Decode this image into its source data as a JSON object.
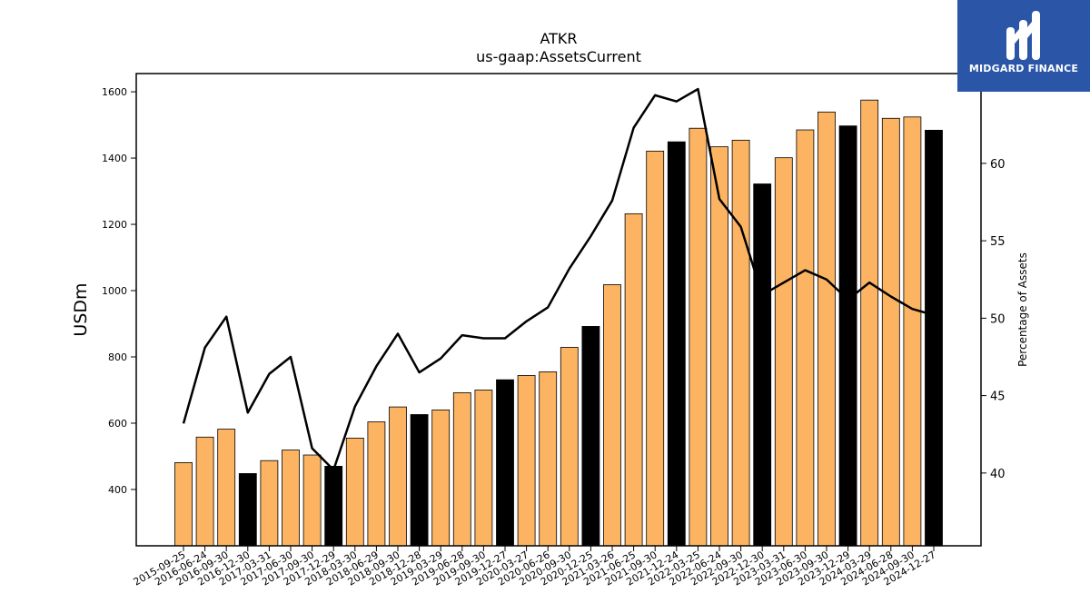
{
  "chart_data": {
    "type": "bar",
    "title": "ATKR",
    "subtitle": "us-gaap:AssetsCurrent",
    "ylabel": "USDm",
    "y2label": "Percentage of Assets",
    "ylim": [
      230,
      1655
    ],
    "y2lim": [
      35.3,
      65.8
    ],
    "yticks": [
      400,
      600,
      800,
      1000,
      1200,
      1400,
      1600
    ],
    "y2ticks": [
      40,
      45,
      50,
      55,
      60
    ],
    "grid": false,
    "categories": [
      "2015-09-25",
      "2016-06-24",
      "2016-09-30",
      "2016-12-30",
      "2017-03-31",
      "2017-06-30",
      "2017-09-30",
      "2017-12-29",
      "2018-03-30",
      "2018-06-29",
      "2018-09-30",
      "2018-12-28",
      "2019-03-29",
      "2019-06-28",
      "2019-09-30",
      "2019-12-27",
      "2020-03-27",
      "2020-06-26",
      "2020-09-30",
      "2020-12-25",
      "2021-03-26",
      "2021-06-25",
      "2021-09-30",
      "2021-12-24",
      "2022-03-25",
      "2022-06-24",
      "2022-09-30",
      "2022-12-30",
      "2023-03-31",
      "2023-06-30",
      "2023-09-30",
      "2023-12-29",
      "2024-03-29",
      "2024-06-28",
      "2024-09-30",
      "2024-12-27"
    ],
    "series": [
      {
        "type": "bar",
        "axis": "left",
        "values": [
          481,
          558,
          582,
          448,
          487,
          519,
          504,
          470,
          555,
          604,
          649,
          626,
          640,
          692,
          700,
          731,
          744,
          755,
          829,
          892,
          1018,
          1232,
          1421,
          1449,
          1490,
          1434,
          1454,
          1322,
          1401,
          1485,
          1539,
          1497,
          1575,
          1520,
          1524,
          1484
        ],
        "highlight": [
          false,
          false,
          false,
          true,
          false,
          false,
          false,
          true,
          false,
          false,
          false,
          true,
          false,
          false,
          false,
          true,
          false,
          false,
          false,
          true,
          false,
          false,
          false,
          true,
          false,
          false,
          false,
          true,
          false,
          false,
          false,
          true,
          false,
          false,
          false,
          true
        ]
      },
      {
        "type": "line",
        "axis": "right",
        "values": [
          43.2,
          48.1,
          50.1,
          43.9,
          46.4,
          47.5,
          41.6,
          40.2,
          44.3,
          46.9,
          49.0,
          46.5,
          47.4,
          48.9,
          48.7,
          48.7,
          49.8,
          50.7,
          53.2,
          55.3,
          57.6,
          62.3,
          64.4,
          64.0,
          64.8,
          57.7,
          55.9,
          51.5,
          52.3,
          53.1,
          52.5,
          51.2,
          52.3,
          51.4,
          50.6,
          50.2
        ]
      }
    ],
    "colors": {
      "bar": "#fdb462",
      "bar_highlight": "#000000",
      "line": "#000000"
    }
  },
  "logo": {
    "text": "MIDGARD FINANCE"
  }
}
